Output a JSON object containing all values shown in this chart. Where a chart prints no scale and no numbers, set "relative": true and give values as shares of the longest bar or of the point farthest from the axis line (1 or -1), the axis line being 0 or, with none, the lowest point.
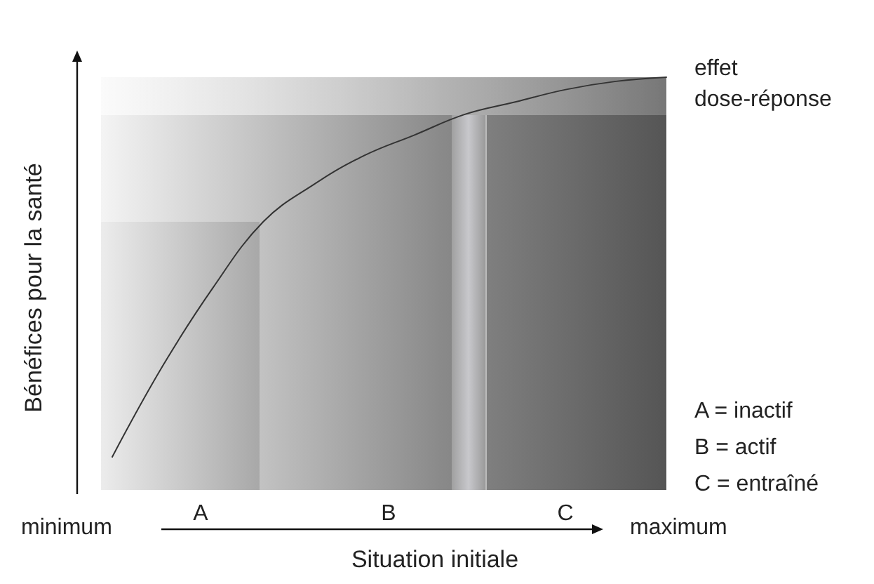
{
  "chart_data": {
    "type": "line",
    "relative": true,
    "xlabel": "Situation initiale",
    "ylabel": "Bénéfices pour la santé",
    "categories": [
      null,
      null,
      null,
      null,
      null,
      null,
      null,
      null,
      null,
      null,
      null,
      null
    ],
    "series": [
      {
        "color": "#333333",
        "values": [
          0.08,
          0.3,
          0.49,
          0.65,
          0.74,
          0.81,
          0.86,
          0.91,
          0.94,
          0.97,
          0.99,
          1
        ]
      }
    ],
    "marker": "none",
    "line_style": "solid",
    "annotations": [
      "effet dose-réponse",
      "A = inactif",
      "B = actif",
      "C = entraîné",
      "minimum",
      "maximum",
      "A",
      "B",
      "C"
    ]
  }
}
